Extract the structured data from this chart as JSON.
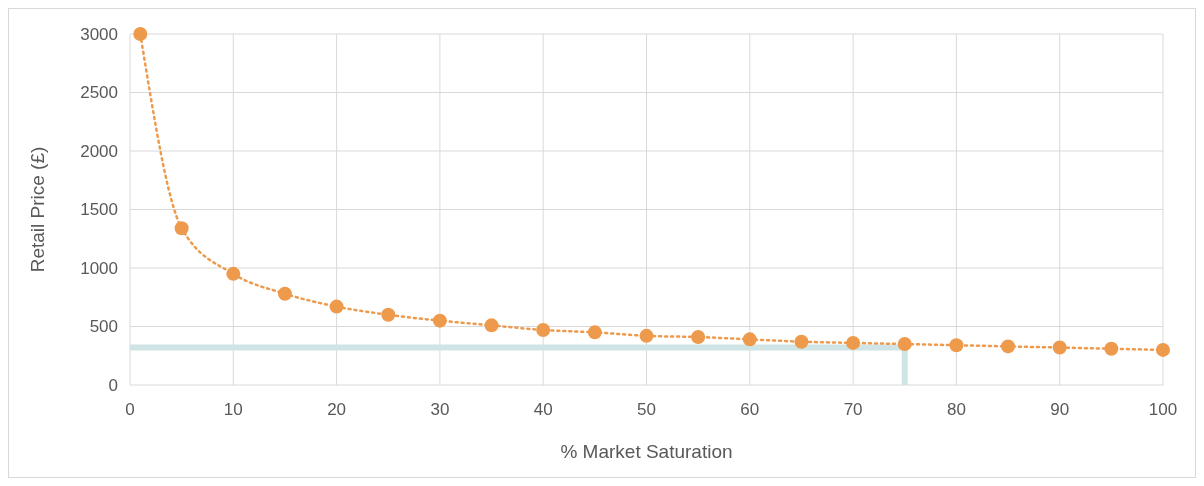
{
  "chart_data": {
    "type": "line",
    "xlabel": "% Market Saturation",
    "ylabel": "Retail Price (£)",
    "xlim": [
      0,
      100
    ],
    "xticks": [
      0,
      10,
      20,
      30,
      40,
      50,
      60,
      70,
      80,
      90,
      100
    ],
    "ylim": [
      0,
      3000
    ],
    "yticks": [
      0,
      500,
      1000,
      1500,
      2000,
      2500,
      3000
    ],
    "grid": true,
    "series": [
      {
        "color": "#cfe4e4",
        "marker": "none",
        "line_style": "solid",
        "x": [
          0,
          75,
          75
        ],
        "values": [
          320,
          320,
          0
        ]
      },
      {
        "color": "#ee9a4c",
        "marker": "circle",
        "line_style": "dotted",
        "x": [
          1,
          5,
          10,
          15,
          20,
          25,
          30,
          35,
          40,
          45,
          50,
          55,
          60,
          65,
          70,
          75,
          80,
          85,
          90,
          95,
          100
        ],
        "values": [
          3000,
          1340,
          950,
          780,
          670,
          600,
          550,
          510,
          470,
          450,
          420,
          410,
          390,
          370,
          360,
          350,
          340,
          330,
          320,
          310,
          300
        ]
      }
    ]
  }
}
